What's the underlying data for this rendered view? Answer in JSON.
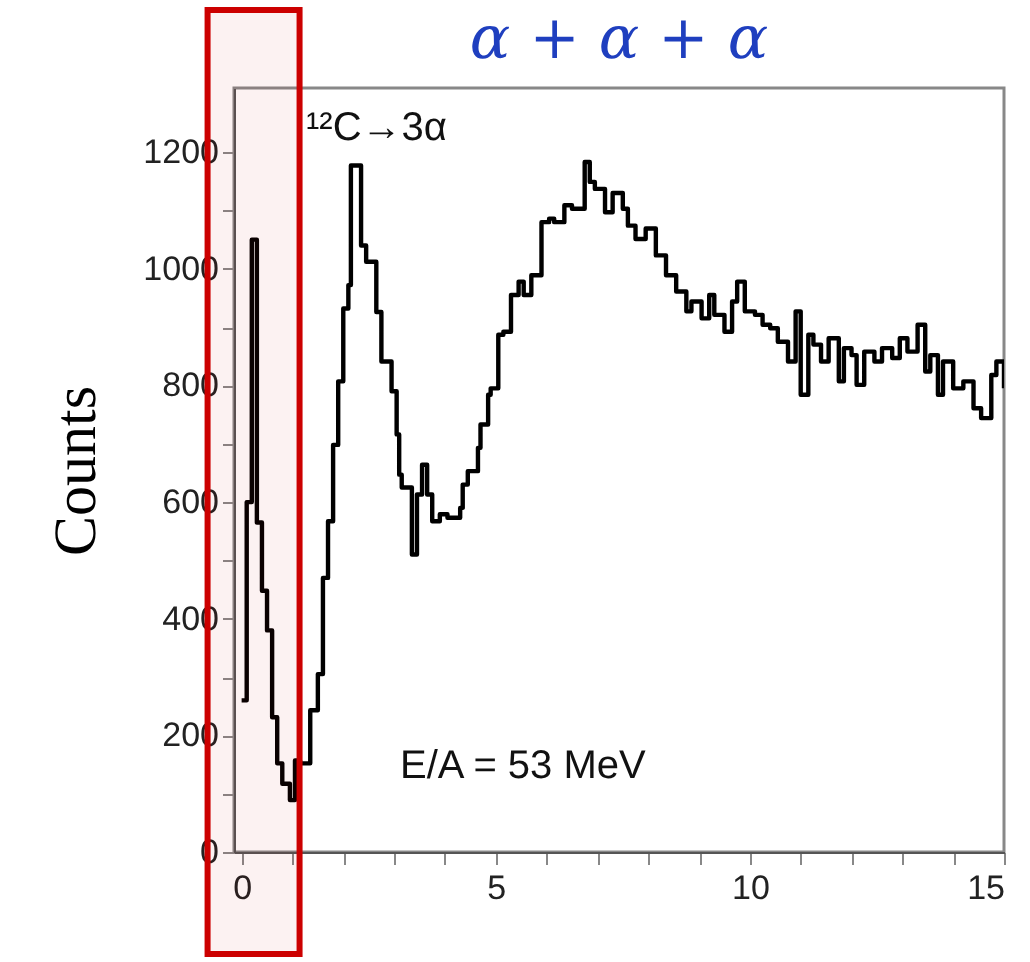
{
  "chart_data": {
    "type": "step",
    "title": "α + α + α",
    "ylabel": "Counts",
    "annotations": [
      "¹²C→3α",
      "E/A = 53 MeV"
    ],
    "x": [
      0.0,
      0.1,
      0.2,
      0.3,
      0.4,
      0.5,
      0.6,
      0.7,
      0.8,
      0.95,
      1.05,
      1.15,
      1.35,
      1.5,
      1.6,
      1.7,
      1.8,
      1.9,
      2.0,
      2.1,
      2.15,
      2.35,
      2.45,
      2.65,
      2.75,
      2.95,
      3.05,
      3.1,
      3.15,
      3.35,
      3.45,
      3.55,
      3.65,
      3.75,
      3.9,
      4.05,
      4.3,
      4.35,
      4.45,
      4.65,
      4.7,
      4.85,
      4.9,
      5.05,
      5.15,
      5.3,
      5.45,
      5.55,
      5.7,
      5.9,
      6.05,
      6.15,
      6.35,
      6.5,
      6.75,
      6.85,
      6.95,
      7.15,
      7.3,
      7.5,
      7.6,
      7.75,
      7.95,
      8.15,
      8.35,
      8.55,
      8.75,
      8.85,
      9.05,
      9.2,
      9.3,
      9.5,
      9.65,
      9.75,
      9.9,
      10.1,
      10.25,
      10.4,
      10.55,
      10.75,
      10.9,
      11.0,
      11.15,
      11.25,
      11.4,
      11.55,
      11.75,
      11.85,
      12.0,
      12.1,
      12.25,
      12.45,
      12.6,
      12.8,
      12.95,
      13.1,
      13.3,
      13.45,
      13.55,
      13.7,
      13.8,
      14.0,
      14.2,
      14.4,
      14.55,
      14.75,
      14.85,
      15.0
    ],
    "series": [
      {
        "color": "#000000",
        "values": [
          260,
          600,
          1050,
          565,
          448,
          380,
          231,
          152,
          117,
          89,
          157,
          152,
          243,
          305,
          470,
          567,
          698,
          807,
          932,
          972,
          1177,
          1040,
          1012,
          926,
          841,
          790,
          716,
          647,
          625,
          510,
          613,
          664,
          613,
          567,
          579,
          573,
          590,
          630,
          653,
          693,
          733,
          784,
          795,
          887,
          892,
          955,
          978,
          955,
          989,
          1080,
          1086,
          1080,
          1109,
          1103,
          1183,
          1149,
          1137,
          1097,
          1130,
          1103,
          1074,
          1051,
          1069,
          1023,
          989,
          961,
          927,
          944,
          915,
          955,
          921,
          892,
          944,
          978,
          927,
          921,
          904,
          898,
          875,
          841,
          927,
          784,
          887,
          870,
          841,
          881,
          807,
          864,
          852,
          801,
          858,
          841,
          864,
          847,
          881,
          858,
          904,
          824,
          852,
          784,
          841,
          795,
          807,
          761,
          744,
          818,
          841,
          795
        ]
      }
    ],
    "xlim": [
      -0.15,
      15
    ],
    "xticks": [
      0,
      {
        "value": 1,
        "label": null
      },
      {
        "value": 2,
        "label": null
      },
      {
        "value": 3,
        "label": null
      },
      {
        "value": 4,
        "label": null
      },
      5,
      {
        "value": 6,
        "label": null
      },
      {
        "value": 7,
        "label": null
      },
      {
        "value": 8,
        "label": null
      },
      {
        "value": 9,
        "label": null
      },
      10,
      {
        "value": 11,
        "label": null
      },
      {
        "value": 12,
        "label": null
      },
      {
        "value": 13,
        "label": null
      },
      {
        "value": 14,
        "label": null
      },
      15
    ],
    "ylim": [
      0,
      1310
    ],
    "yticks": [
      0,
      {
        "value": 100,
        "label": null
      },
      200,
      {
        "value": 300,
        "label": null
      },
      400,
      {
        "value": 500,
        "label": null
      },
      600,
      {
        "value": 700,
        "label": null
      },
      800,
      {
        "value": 900,
        "label": null
      },
      1000,
      {
        "value": 1100,
        "label": null
      },
      1200
    ],
    "bands": [
      {
        "axis": "x",
        "from": -0.67,
        "to": 1.14,
        "color": "#cc0000"
      }
    ],
    "grid": false
  }
}
